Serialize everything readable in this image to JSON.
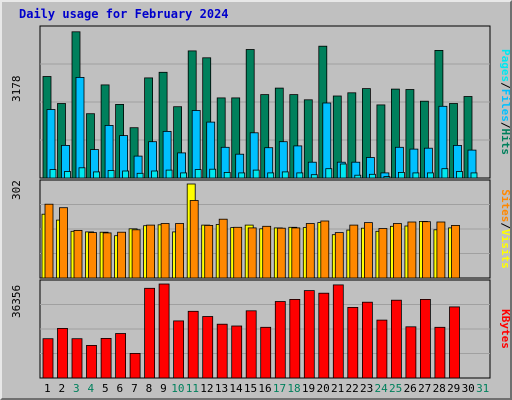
{
  "title": "Daily usage for February 2024",
  "colors": {
    "background": "#c0c0c0",
    "plot_bg": "#c0c0c0",
    "grid": "#a0a0a0",
    "title": "#0000cc",
    "hits": "#00805c",
    "files": "#00c0ff",
    "pages": "#00e8f0",
    "visits": "#ffff00",
    "sites": "#ff8800",
    "kbytes": "#ff0000",
    "weekday_label": "#000000",
    "weekend_label": "#00805c",
    "slash": "#000000"
  },
  "labels": {
    "top_max": "3178",
    "mid_max": "302",
    "bot_max": "36356",
    "hits": "Hits",
    "files": "Files",
    "pages": "Pages",
    "visits": "Visits",
    "sites": "Sites",
    "kbytes": "KBytes",
    "slash": "/"
  },
  "chart_data": {
    "type": "bar",
    "title": "Daily usage for February 2024",
    "categories": [
      "1",
      "2",
      "3",
      "4",
      "5",
      "6",
      "7",
      "8",
      "9",
      "10",
      "11",
      "12",
      "13",
      "14",
      "15",
      "16",
      "17",
      "18",
      "19",
      "20",
      "21",
      "22",
      "23",
      "24",
      "25",
      "26",
      "27",
      "28",
      "29",
      "30",
      "31"
    ],
    "weekend_days": [
      3,
      4,
      10,
      11,
      17,
      18,
      24,
      25,
      31
    ],
    "panels": [
      {
        "name": "top",
        "ymax": 3178,
        "tick_label": "3178",
        "series": [
          {
            "name": "Hits",
            "values": [
              2180,
              1600,
              3140,
              1380,
              2000,
              1580,
              1080,
              2150,
              2270,
              1530,
              2730,
              2580,
              1720,
              1720,
              2760,
              1790,
              1930,
              1790,
              1680,
              2830,
              1760,
              1830,
              1920,
              1570,
              1910,
              1900,
              1650,
              2740,
              1600,
              1750,
              null
            ]
          },
          {
            "name": "Files",
            "values": [
              1470,
              700,
              2160,
              610,
              1130,
              910,
              470,
              780,
              1000,
              540,
              1450,
              1200,
              660,
              510,
              970,
              650,
              780,
              690,
              340,
              1610,
              340,
              340,
              440,
              110,
              660,
              620,
              640,
              1540,
              700,
              600,
              null
            ]
          },
          {
            "name": "Pages",
            "values": [
              180,
              140,
              220,
              130,
              160,
              150,
              100,
              150,
              170,
              110,
              180,
              190,
              120,
              110,
              170,
              110,
              130,
              110,
              70,
              200,
              300,
              60,
              80,
              30,
              120,
              110,
              110,
              200,
              140,
              110,
              null
            ]
          }
        ]
      },
      {
        "name": "middle",
        "ymax": 302,
        "tick_label": "302",
        "series": [
          {
            "name": "Visits",
            "values": [
              205,
              186,
              150,
              148,
              147,
              136,
              158,
              168,
              171,
              148,
              302,
              170,
              172,
              162,
              170,
              158,
              161,
              163,
              162,
              178,
              139,
              154,
              160,
              150,
              166,
              167,
              182,
              155,
              161,
              null,
              null
            ]
          },
          {
            "name": "Sites",
            "values": [
              237,
              226,
              153,
              146,
              145,
              147,
              155,
              170,
              175,
              175,
              249,
              169,
              189,
              163,
              161,
              166,
              160,
              161,
              175,
              183,
              146,
              170,
              178,
              159,
              175,
              180,
              181,
              180,
              169,
              null,
              null
            ]
          }
        ]
      },
      {
        "name": "bottom",
        "ymax": 36356,
        "tick_label": "36356",
        "series": [
          {
            "name": "KBytes",
            "values": [
              15200,
              19200,
              15200,
              12600,
              15300,
              17200,
              9500,
              34700,
              36356,
              22100,
              25800,
              23800,
              20800,
              20100,
              26000,
              19600,
              29600,
              30400,
              33800,
              32800,
              36000,
              27300,
              29300,
              22400,
              30100,
              19800,
              30400,
              19600,
              27500,
              null,
              null
            ]
          }
        ]
      }
    ]
  }
}
